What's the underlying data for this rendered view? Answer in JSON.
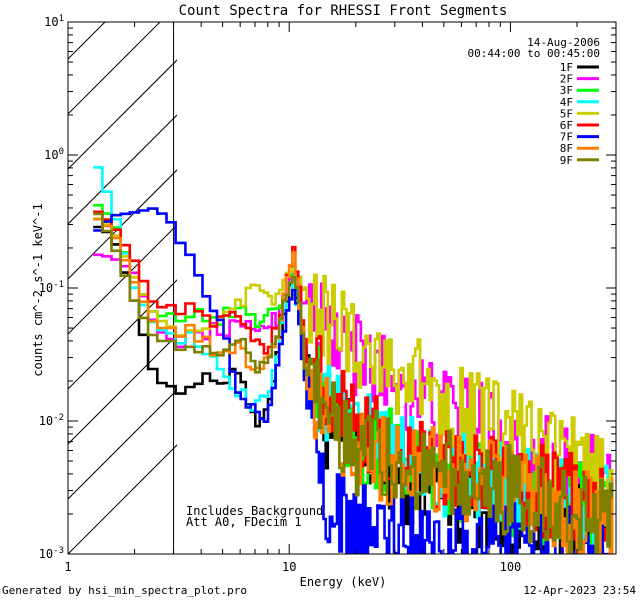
{
  "chart_data": {
    "type": "line",
    "title": "Count Spectra for RHESSI Front Segments",
    "date": "14-Aug-2006",
    "time_range": "00:44:00 to 00:45:00",
    "xlabel": "Energy (keV)",
    "ylabel": "counts cm^-2 s^-1 keV^-1",
    "xscale": "log",
    "yscale": "log",
    "xlim": [
      1,
      300
    ],
    "ylim": [
      0.001,
      10
    ],
    "x_ticks": [
      {
        "v": 1,
        "label": "1"
      },
      {
        "v": 10,
        "label": "10"
      },
      {
        "v": 100,
        "label": "100"
      }
    ],
    "y_ticks": [
      {
        "v": 0.001,
        "base": "10",
        "exp": "-3"
      },
      {
        "v": 0.01,
        "base": "10",
        "exp": "-2"
      },
      {
        "v": 0.1,
        "base": "10",
        "exp": "-1"
      },
      {
        "v": 1,
        "base": "10",
        "exp": "0"
      },
      {
        "v": 10,
        "base": "10",
        "exp": "1"
      }
    ],
    "shaded_region_below_keV": 3,
    "annotation": [
      "Includes Background",
      "Att A0, FDecim 1"
    ],
    "footer_left": "Generated by hsi_min_spectra_plot.pro",
    "footer_right": "12-Apr-2023 23:54",
    "series": [
      {
        "name": "1F",
        "color": "#000000",
        "ref_points": [
          [
            1.3,
            0.3
          ],
          [
            1.6,
            0.25
          ],
          [
            2,
            0.08
          ],
          [
            2.5,
            0.02
          ],
          [
            3,
            0.018
          ],
          [
            5,
            0.021
          ],
          [
            6,
            0.025
          ],
          [
            7,
            0.009
          ],
          [
            8,
            0.011
          ],
          [
            9,
            0.04
          ],
          [
            10,
            0.1
          ],
          [
            10.5,
            0.12
          ],
          [
            11,
            0.08
          ],
          [
            12,
            0.03
          ],
          [
            14,
            0.01
          ],
          [
            20,
            0.006
          ],
          [
            30,
            0.004
          ],
          [
            50,
            0.003
          ],
          [
            100,
            0.002
          ],
          [
            200,
            0.0017
          ],
          [
            290,
            0.0015
          ]
        ]
      },
      {
        "name": "2F",
        "color": "#ff00ff",
        "ref_points": [
          [
            1.3,
            0.18
          ],
          [
            1.6,
            0.17
          ],
          [
            2,
            0.13
          ],
          [
            2.5,
            0.05
          ],
          [
            3,
            0.04
          ],
          [
            5,
            0.05
          ],
          [
            7,
            0.05
          ],
          [
            9,
            0.06
          ],
          [
            10,
            0.11
          ],
          [
            10.5,
            0.14
          ],
          [
            11,
            0.1
          ],
          [
            13,
            0.06
          ],
          [
            20,
            0.03
          ],
          [
            30,
            0.02
          ],
          [
            50,
            0.012
          ],
          [
            100,
            0.007
          ],
          [
            200,
            0.004
          ],
          [
            290,
            0.003
          ]
        ]
      },
      {
        "name": "3F",
        "color": "#00ff00",
        "ref_points": [
          [
            1.3,
            0.45
          ],
          [
            1.6,
            0.33
          ],
          [
            2,
            0.12
          ],
          [
            2.5,
            0.06
          ],
          [
            3,
            0.065
          ],
          [
            5,
            0.06
          ],
          [
            6,
            0.07
          ],
          [
            7,
            0.055
          ],
          [
            8,
            0.065
          ],
          [
            9,
            0.07
          ],
          [
            10,
            0.12
          ],
          [
            10.5,
            0.14
          ],
          [
            11,
            0.09
          ],
          [
            12,
            0.025
          ],
          [
            20,
            0.008
          ],
          [
            50,
            0.004
          ],
          [
            100,
            0.003
          ],
          [
            200,
            0.0022
          ],
          [
            290,
            0.002
          ]
        ]
      },
      {
        "name": "4F",
        "color": "#00ffff",
        "ref_points": [
          [
            1.3,
            1.0
          ],
          [
            1.6,
            0.4
          ],
          [
            2,
            0.1
          ],
          [
            2.5,
            0.05
          ],
          [
            3,
            0.045
          ],
          [
            4,
            0.04
          ],
          [
            5,
            0.02
          ],
          [
            6,
            0.016
          ],
          [
            7,
            0.012
          ],
          [
            8,
            0.015
          ],
          [
            9,
            0.04
          ],
          [
            10,
            0.12
          ],
          [
            10.5,
            0.1
          ],
          [
            11,
            0.07
          ],
          [
            12,
            0.02
          ],
          [
            20,
            0.008
          ],
          [
            50,
            0.004
          ],
          [
            100,
            0.003
          ],
          [
            200,
            0.0025
          ],
          [
            290,
            0.002
          ]
        ]
      },
      {
        "name": "5F",
        "color": "#cccc00",
        "ref_points": [
          [
            1.3,
            0.35
          ],
          [
            1.6,
            0.28
          ],
          [
            2,
            0.12
          ],
          [
            2.5,
            0.06
          ],
          [
            3,
            0.05
          ],
          [
            4,
            0.05
          ],
          [
            5,
            0.055
          ],
          [
            6,
            0.075
          ],
          [
            7,
            0.1
          ],
          [
            8,
            0.08
          ],
          [
            9,
            0.09
          ],
          [
            10,
            0.13
          ],
          [
            10.5,
            0.15
          ],
          [
            11,
            0.11
          ],
          [
            13,
            0.07
          ],
          [
            20,
            0.04
          ],
          [
            30,
            0.025
          ],
          [
            50,
            0.015
          ],
          [
            100,
            0.008
          ],
          [
            200,
            0.005
          ],
          [
            290,
            0.003
          ]
        ]
      },
      {
        "name": "6F",
        "color": "#ff0000",
        "ref_points": [
          [
            1.3,
            0.4
          ],
          [
            1.6,
            0.3
          ],
          [
            2,
            0.16
          ],
          [
            2.5,
            0.07
          ],
          [
            3,
            0.075
          ],
          [
            4,
            0.065
          ],
          [
            5,
            0.055
          ],
          [
            6,
            0.06
          ],
          [
            7,
            0.04
          ],
          [
            8,
            0.035
          ],
          [
            9,
            0.06
          ],
          [
            10,
            0.14
          ],
          [
            10.5,
            0.18
          ],
          [
            11,
            0.12
          ],
          [
            12,
            0.03
          ],
          [
            20,
            0.008
          ],
          [
            50,
            0.004
          ],
          [
            100,
            0.0035
          ],
          [
            200,
            0.0025
          ],
          [
            290,
            0.002
          ]
        ]
      },
      {
        "name": "7F",
        "color": "#0000ff",
        "ref_points": [
          [
            1.3,
            0.25
          ],
          [
            1.6,
            0.35
          ],
          [
            2,
            0.37
          ],
          [
            2.5,
            0.4
          ],
          [
            3,
            0.3
          ],
          [
            3.5,
            0.2
          ],
          [
            4,
            0.1
          ],
          [
            5,
            0.05
          ],
          [
            6,
            0.015
          ],
          [
            7,
            0.012
          ],
          [
            8,
            0.01
          ],
          [
            9,
            0.03
          ],
          [
            10,
            0.08
          ],
          [
            10.5,
            0.1
          ],
          [
            11,
            0.07
          ],
          [
            12,
            0.015
          ],
          [
            15,
            0.002
          ],
          [
            20,
            0.0015
          ],
          [
            50,
            0.0015
          ],
          [
            100,
            0.0012
          ],
          [
            200,
            0.0012
          ],
          [
            290,
            0.001
          ]
        ]
      },
      {
        "name": "8F",
        "color": "#ff8000",
        "ref_points": [
          [
            1.3,
            0.35
          ],
          [
            1.6,
            0.27
          ],
          [
            2,
            0.11
          ],
          [
            2.5,
            0.05
          ],
          [
            3,
            0.05
          ],
          [
            4,
            0.045
          ],
          [
            5,
            0.03
          ],
          [
            6,
            0.035
          ],
          [
            7,
            0.025
          ],
          [
            8,
            0.03
          ],
          [
            9,
            0.05
          ],
          [
            10,
            0.15
          ],
          [
            10.5,
            0.17
          ],
          [
            11,
            0.1
          ],
          [
            12,
            0.02
          ],
          [
            20,
            0.006
          ],
          [
            50,
            0.004
          ],
          [
            100,
            0.003
          ],
          [
            200,
            0.002
          ],
          [
            290,
            0.0018
          ]
        ]
      },
      {
        "name": "9F",
        "color": "#808000",
        "ref_points": [
          [
            1.3,
            0.42
          ],
          [
            1.6,
            0.22
          ],
          [
            2,
            0.08
          ],
          [
            2.5,
            0.04
          ],
          [
            3,
            0.04
          ],
          [
            4,
            0.035
          ],
          [
            5,
            0.03
          ],
          [
            6,
            0.04
          ],
          [
            7,
            0.025
          ],
          [
            8,
            0.025
          ],
          [
            9,
            0.045
          ],
          [
            10,
            0.11
          ],
          [
            10.5,
            0.13
          ],
          [
            11,
            0.09
          ],
          [
            12,
            0.02
          ],
          [
            20,
            0.006
          ],
          [
            50,
            0.004
          ],
          [
            100,
            0.003
          ],
          [
            200,
            0.002
          ],
          [
            290,
            0.0018
          ]
        ]
      }
    ]
  }
}
